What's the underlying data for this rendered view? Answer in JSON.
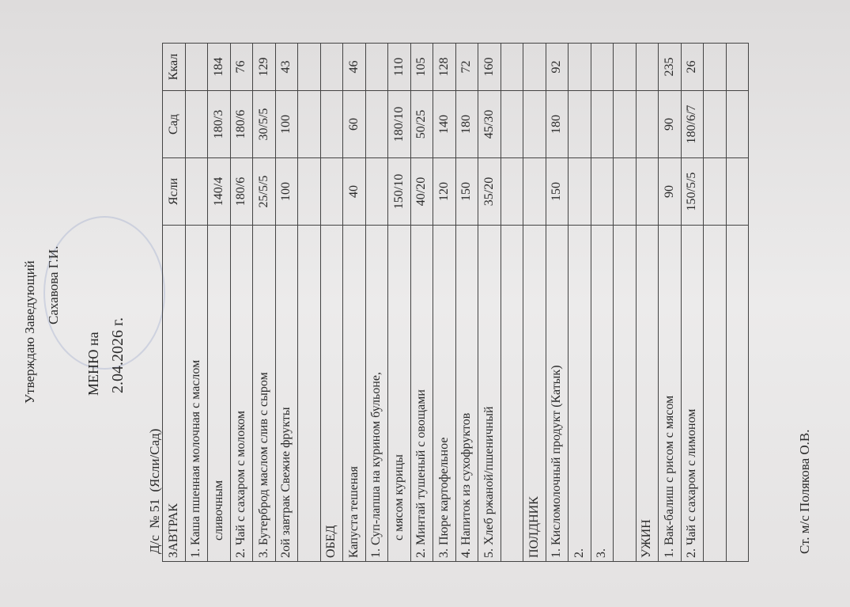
{
  "header": {
    "approve": "Утверждаю Заведующий",
    "signer": "Сахавова Г.И."
  },
  "title": {
    "line1": "МЕНЮ на",
    "line2": "2.04.2026 г."
  },
  "subtitle": "Д/с  № 51  (Ясли/Сад)",
  "table": {
    "rows": [
      [
        "ЗАВТРАК",
        "Ясли",
        "Сад",
        "Ккал"
      ],
      [
        "1. Каша пшенная молочная с маслом",
        null,
        null,
        null
      ],
      [
        "сливочным",
        "140/4",
        "180/3",
        184
      ],
      [
        "2.  Чай с сахаром с молоком",
        "180/6",
        "180/6",
        76
      ],
      [
        "3. Бутерброд  маслом слив  с сыром",
        "25/5/5",
        "30/5/5",
        129
      ],
      [
        "2ой завтрак  Свежие фрукты",
        "100",
        "100",
        43
      ],
      [
        null,
        null,
        null,
        null
      ],
      [
        "ОБЕД",
        null,
        null,
        null
      ],
      [
        "Капуста тешеная",
        "40",
        "60",
        46
      ],
      [
        "1. Суп-лапша на курином бульоне,",
        null,
        null,
        null
      ],
      [
        "с мясом курицы",
        "150/10",
        "180/10",
        110
      ],
      [
        "2. Минтай тушеный с овощами",
        "40/20",
        "50/25",
        105
      ],
      [
        "3. Пюре картофельное",
        "120",
        "140",
        128
      ],
      [
        "4. Напиток из сухофруктов",
        "150",
        "180",
        72
      ],
      [
        "5. Хлеб ржаной/пшеничный",
        "35/20",
        "45/30",
        160
      ],
      [
        null,
        null,
        null,
        null
      ],
      [
        "ПОЛДНИК",
        null,
        null,
        null
      ],
      [
        "1. Кисломолочный продукт (Катык)",
        "150",
        "180",
        92
      ],
      [
        "2.",
        null,
        null,
        null
      ],
      [
        "3.",
        null,
        null,
        null
      ],
      [
        null,
        null,
        null,
        null
      ],
      [
        "УЖИН",
        null,
        null,
        null
      ],
      [
        "1. Вак-балиш с рисом с мясом",
        "90",
        "90",
        235
      ],
      [
        "2. Чай с сахаром с лимоном",
        "150/5/5",
        "180/6/7",
        26
      ],
      [
        null,
        null,
        null,
        null
      ],
      [
        null,
        null,
        null,
        null
      ]
    ]
  },
  "footer": "Ст. м/с Полякова О.В."
}
